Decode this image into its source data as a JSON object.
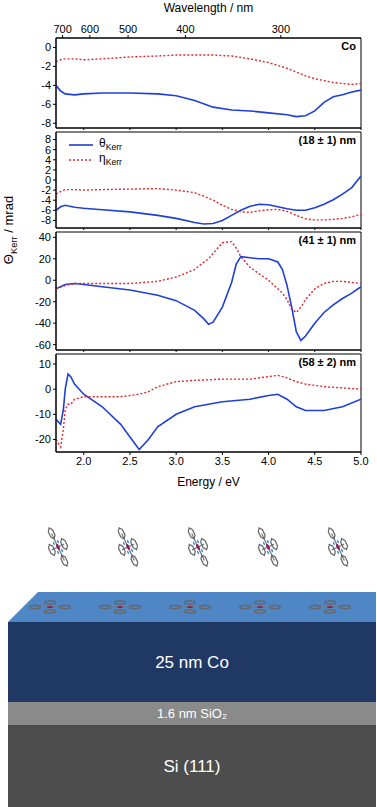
{
  "chart_data": [
    {
      "type": "line",
      "title": "Co",
      "ylabel": "ΘKerr / mrad",
      "x2label": "Wavelength / nm",
      "x2ticks": [
        700,
        600,
        500,
        400,
        300
      ],
      "xlim": [
        1.7,
        5.0
      ],
      "ylim": [
        -8.5,
        1
      ],
      "yticks": [
        -8,
        -6,
        -4,
        -2,
        0
      ],
      "x": [
        1.7,
        1.75,
        1.8,
        1.9,
        2.0,
        2.2,
        2.5,
        2.8,
        3.0,
        3.2,
        3.4,
        3.6,
        3.8,
        4.0,
        4.2,
        4.3,
        4.4,
        4.5,
        4.6,
        4.7,
        4.8,
        4.9,
        5.0
      ],
      "series": [
        {
          "name": "θKerr",
          "color": "#1f3fd9",
          "line_style": "solid",
          "values": [
            -4.0,
            -4.6,
            -4.9,
            -5.0,
            -4.9,
            -4.8,
            -4.8,
            -4.9,
            -5.1,
            -5.6,
            -6.3,
            -6.6,
            -6.7,
            -6.9,
            -7.1,
            -7.3,
            -7.2,
            -6.7,
            -5.8,
            -5.2,
            -5.0,
            -4.7,
            -4.5
          ]
        },
        {
          "name": "ηKerr",
          "color": "#e3262b",
          "line_style": "dotted",
          "values": [
            -1.5,
            -1.3,
            -1.2,
            -1.2,
            -1.3,
            -1.2,
            -1.0,
            -0.9,
            -0.8,
            -0.8,
            -0.8,
            -0.9,
            -1.2,
            -1.6,
            -2.2,
            -2.6,
            -3.0,
            -3.3,
            -3.5,
            -3.7,
            -3.8,
            -3.9,
            -3.8
          ]
        }
      ]
    },
    {
      "type": "line",
      "title": "(18 ± 1) nm",
      "legend": "upper left",
      "xlim": [
        1.7,
        5.0
      ],
      "ylim": [
        -9.5,
        9.5
      ],
      "yticks": [
        -8,
        -6,
        -4,
        -2,
        0,
        2,
        4,
        6,
        8
      ],
      "x": [
        1.7,
        1.75,
        1.8,
        1.9,
        2.0,
        2.2,
        2.5,
        2.8,
        3.0,
        3.2,
        3.3,
        3.4,
        3.5,
        3.6,
        3.7,
        3.8,
        3.9,
        4.0,
        4.1,
        4.2,
        4.3,
        4.4,
        4.5,
        4.6,
        4.7,
        4.8,
        4.9,
        5.0
      ],
      "series": [
        {
          "name": "θKerr",
          "color": "#1f3fd9",
          "line_style": "solid",
          "values": [
            -6.0,
            -5.3,
            -5.0,
            -5.4,
            -5.6,
            -5.9,
            -6.3,
            -7.0,
            -7.6,
            -8.4,
            -8.7,
            -8.6,
            -8.0,
            -7.0,
            -6.0,
            -5.2,
            -4.8,
            -4.9,
            -5.3,
            -5.7,
            -6.0,
            -6.0,
            -5.5,
            -4.8,
            -3.9,
            -2.8,
            -1.5,
            0.8
          ]
        },
        {
          "name": "ηKerr",
          "color": "#e3262b",
          "line_style": "dotted",
          "values": [
            -2.8,
            -2.3,
            -1.9,
            -1.9,
            -2.0,
            -1.9,
            -1.8,
            -1.7,
            -2.0,
            -2.5,
            -3.2,
            -4.0,
            -5.0,
            -5.8,
            -6.3,
            -6.4,
            -6.1,
            -5.9,
            -5.8,
            -6.2,
            -7.0,
            -7.7,
            -7.9,
            -7.9,
            -7.8,
            -7.6,
            -7.3,
            -6.8
          ]
        }
      ]
    },
    {
      "type": "line",
      "title": "(41 ± 1) nm",
      "xlim": [
        1.7,
        5.0
      ],
      "ylim": [
        -65,
        45
      ],
      "yticks": [
        -60,
        -40,
        -20,
        0,
        20,
        40
      ],
      "x": [
        1.7,
        1.8,
        1.9,
        2.0,
        2.2,
        2.5,
        2.8,
        3.0,
        3.2,
        3.3,
        3.35,
        3.4,
        3.5,
        3.6,
        3.65,
        3.7,
        3.8,
        3.9,
        4.0,
        4.1,
        4.15,
        4.2,
        4.25,
        4.3,
        4.35,
        4.4,
        4.5,
        4.6,
        4.7,
        4.8,
        4.9,
        5.0
      ],
      "series": [
        {
          "name": "θKerr",
          "color": "#1f3fd9",
          "line_style": "solid",
          "values": [
            -8,
            -4,
            -3,
            -4,
            -6,
            -9,
            -14,
            -19,
            -28,
            -36,
            -41,
            -39,
            -25,
            -2,
            15,
            22,
            21,
            20,
            20,
            17,
            10,
            -5,
            -25,
            -48,
            -56,
            -52,
            -40,
            -30,
            -23,
            -17,
            -12,
            -6
          ]
        },
        {
          "name": "ηKerr",
          "color": "#e3262b",
          "line_style": "dotted",
          "values": [
            -8,
            -5,
            -3,
            -3,
            -3,
            -3,
            -1,
            3,
            10,
            17,
            20,
            25,
            35,
            36,
            30,
            22,
            12,
            6,
            0,
            -8,
            -12,
            -18,
            -27,
            -30,
            -25,
            -18,
            -8,
            -3,
            -1,
            -1,
            -2,
            -3
          ]
        }
      ]
    },
    {
      "type": "line",
      "title": "(58 ± 2) nm",
      "xlabel": "Energy / eV",
      "xlim": [
        1.7,
        5.0
      ],
      "ylim": [
        -25,
        14
      ],
      "yticks": [
        -20,
        -10,
        0,
        10
      ],
      "xticks": [
        {
          "value": 2,
          "label": "2.0"
        },
        2.5,
        {
          "value": 3,
          "label": "3.0"
        },
        3.5,
        {
          "value": 4,
          "label": "4.0"
        },
        4.5,
        {
          "value": 5,
          "label": "5.0"
        }
      ],
      "x": [
        1.7,
        1.75,
        1.78,
        1.8,
        1.83,
        1.86,
        1.9,
        2.0,
        2.2,
        2.4,
        2.5,
        2.6,
        2.7,
        2.8,
        3.0,
        3.2,
        3.5,
        3.8,
        4.0,
        4.1,
        4.2,
        4.3,
        4.4,
        4.6,
        4.8,
        5.0
      ],
      "series": [
        {
          "name": "θKerr",
          "color": "#1f3fd9",
          "line_style": "solid",
          "values": [
            -12,
            -14,
            -8,
            0,
            6,
            5,
            2,
            -2,
            -7,
            -14,
            -19,
            -24,
            -20,
            -15,
            -10,
            -7,
            -5,
            -4,
            -2.5,
            -2,
            -4,
            -7,
            -8.5,
            -8.5,
            -7,
            -4
          ]
        },
        {
          "name": "ηKerr",
          "color": "#e3262b",
          "line_style": "dotted",
          "values": [
            -20,
            -23,
            -16,
            -8,
            -6,
            -6,
            -4,
            -3,
            -3,
            -3,
            -2.5,
            -2,
            -1,
            1,
            3,
            3.5,
            4,
            4,
            5,
            5.5,
            4.5,
            3,
            2,
            1,
            0.5,
            0
          ]
        }
      ]
    }
  ],
  "diagram": {
    "layers": [
      "25 nm Co",
      "1.6 nm SiO₂",
      "Si (111)"
    ]
  }
}
